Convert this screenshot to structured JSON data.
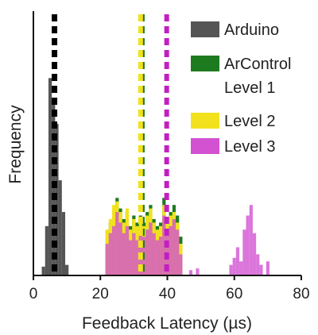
{
  "chart_data": {
    "type": "histogram",
    "xlabel": "Feedback Latency (µs)",
    "ylabel": "Frequency",
    "xlim": [
      0,
      80
    ],
    "x_ticks": [
      0,
      20,
      40,
      60,
      80
    ],
    "y_ticks": [],
    "grid": false,
    "legend_position": "top-right",
    "series": [
      {
        "name": "Arduino",
        "color": "#555555",
        "bin_width": 1,
        "bins": [
          {
            "x": 3,
            "count": 5
          },
          {
            "x": 4,
            "count": 28
          },
          {
            "x": 5,
            "count": 112
          },
          {
            "x": 6,
            "count": 100
          },
          {
            "x": 7,
            "count": 86
          },
          {
            "x": 8,
            "count": 54
          },
          {
            "x": 9,
            "count": 36
          },
          {
            "x": 10,
            "count": 6
          }
        ],
        "mean": 6.3
      },
      {
        "name": "ArControl Level 1",
        "color": "#1e7a1e",
        "bin_width": 1,
        "bins": [
          {
            "x": 22,
            "count": 16
          },
          {
            "x": 23,
            "count": 30
          },
          {
            "x": 24,
            "count": 36
          },
          {
            "x": 25,
            "count": 44
          },
          {
            "x": 26,
            "count": 38
          },
          {
            "x": 27,
            "count": 32
          },
          {
            "x": 28,
            "count": 36
          },
          {
            "x": 29,
            "count": 28
          },
          {
            "x": 30,
            "count": 34
          },
          {
            "x": 31,
            "count": 30
          },
          {
            "x": 32,
            "count": 34
          },
          {
            "x": 33,
            "count": 30
          },
          {
            "x": 34,
            "count": 36
          },
          {
            "x": 35,
            "count": 40
          },
          {
            "x": 36,
            "count": 32
          },
          {
            "x": 37,
            "count": 28
          },
          {
            "x": 38,
            "count": 30
          },
          {
            "x": 39,
            "count": 44
          },
          {
            "x": 40,
            "count": 32
          },
          {
            "x": 41,
            "count": 36
          },
          {
            "x": 42,
            "count": 40
          },
          {
            "x": 43,
            "count": 34
          },
          {
            "x": 44,
            "count": 22
          }
        ],
        "mean": 32.5
      },
      {
        "name": "Level 2",
        "color": "#f2e21e",
        "bin_width": 1,
        "bins": [
          {
            "x": 22,
            "count": 26
          },
          {
            "x": 23,
            "count": 32
          },
          {
            "x": 24,
            "count": 40
          },
          {
            "x": 25,
            "count": 42
          },
          {
            "x": 26,
            "count": 36
          },
          {
            "x": 27,
            "count": 30
          },
          {
            "x": 28,
            "count": 38
          },
          {
            "x": 29,
            "count": 26
          },
          {
            "x": 30,
            "count": 32
          },
          {
            "x": 31,
            "count": 28
          },
          {
            "x": 32,
            "count": 32
          },
          {
            "x": 33,
            "count": 28
          },
          {
            "x": 34,
            "count": 34
          },
          {
            "x": 35,
            "count": 38
          },
          {
            "x": 36,
            "count": 30
          },
          {
            "x": 37,
            "count": 26
          },
          {
            "x": 38,
            "count": 28
          },
          {
            "x": 39,
            "count": 40
          },
          {
            "x": 40,
            "count": 30
          },
          {
            "x": 41,
            "count": 34
          },
          {
            "x": 42,
            "count": 36
          },
          {
            "x": 43,
            "count": 30
          },
          {
            "x": 44,
            "count": 18
          }
        ],
        "mean": 32.0
      },
      {
        "name": "Level 3",
        "color": "#d252d2",
        "bin_width": 1,
        "bins": [
          {
            "x": 22,
            "count": 18
          },
          {
            "x": 23,
            "count": 24
          },
          {
            "x": 24,
            "count": 28
          },
          {
            "x": 25,
            "count": 36
          },
          {
            "x": 26,
            "count": 30
          },
          {
            "x": 27,
            "count": 24
          },
          {
            "x": 28,
            "count": 28
          },
          {
            "x": 29,
            "count": 20
          },
          {
            "x": 30,
            "count": 24
          },
          {
            "x": 31,
            "count": 20
          },
          {
            "x": 32,
            "count": 24
          },
          {
            "x": 33,
            "count": 22
          },
          {
            "x": 34,
            "count": 26
          },
          {
            "x": 35,
            "count": 30
          },
          {
            "x": 36,
            "count": 24
          },
          {
            "x": 37,
            "count": 20
          },
          {
            "x": 38,
            "count": 22
          },
          {
            "x": 39,
            "count": 34
          },
          {
            "x": 40,
            "count": 24
          },
          {
            "x": 41,
            "count": 28
          },
          {
            "x": 42,
            "count": 32
          },
          {
            "x": 43,
            "count": 26
          },
          {
            "x": 44,
            "count": 12
          },
          {
            "x": 47,
            "count": 3
          },
          {
            "x": 49,
            "count": 4
          },
          {
            "x": 59,
            "count": 6
          },
          {
            "x": 60,
            "count": 10
          },
          {
            "x": 61,
            "count": 16
          },
          {
            "x": 62,
            "count": 8
          },
          {
            "x": 63,
            "count": 26
          },
          {
            "x": 64,
            "count": 34
          },
          {
            "x": 65,
            "count": 40
          },
          {
            "x": 66,
            "count": 24
          },
          {
            "x": 67,
            "count": 12
          },
          {
            "x": 68,
            "count": 6
          },
          {
            "x": 70,
            "count": 8
          }
        ],
        "mean": 39.8
      }
    ]
  }
}
